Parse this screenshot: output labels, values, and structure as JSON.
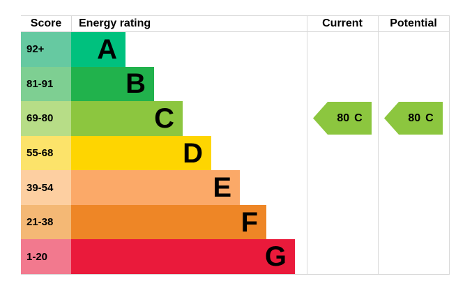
{
  "header": {
    "score": "Score",
    "rating": "Energy rating",
    "current": "Current",
    "potential": "Potential"
  },
  "bands": [
    {
      "score_range": "92+",
      "letter": "A",
      "bar_color": "#00c17e",
      "score_bg": "#66c9a1"
    },
    {
      "score_range": "81-91",
      "letter": "B",
      "bar_color": "#21b24c",
      "score_bg": "#7ecf92"
    },
    {
      "score_range": "69-80",
      "letter": "C",
      "bar_color": "#8cc63f",
      "score_bg": "#b7dd87"
    },
    {
      "score_range": "55-68",
      "letter": "D",
      "bar_color": "#fed501",
      "score_bg": "#fce36a"
    },
    {
      "score_range": "39-54",
      "letter": "E",
      "bar_color": "#fba968",
      "score_bg": "#fdcfa1"
    },
    {
      "score_range": "21-38",
      "letter": "F",
      "bar_color": "#ee8626",
      "score_bg": "#f4b875"
    },
    {
      "score_range": "1-20",
      "letter": "G",
      "bar_color": "#ea1a3b",
      "score_bg": "#f2798e"
    }
  ],
  "current": {
    "score": "80",
    "band": "C",
    "arrow_color": "#8cc63f"
  },
  "potential": {
    "score": "80",
    "band": "C",
    "arrow_color": "#8cc63f"
  },
  "grid_color": "#d8d8d8",
  "chart_data": {
    "type": "bar",
    "title": "Energy rating",
    "categories": [
      "A",
      "B",
      "C",
      "D",
      "E",
      "F",
      "G"
    ],
    "score_ranges": [
      "92+",
      "81-91",
      "69-80",
      "55-68",
      "39-54",
      "21-38",
      "1-20"
    ],
    "band_colors": [
      "#00c17e",
      "#21b24c",
      "#8cc63f",
      "#fed501",
      "#fba968",
      "#ee8626",
      "#ea1a3b"
    ],
    "values": [
      78,
      119,
      160,
      201,
      242,
      280,
      321
    ],
    "annotations": [
      {
        "label": "Current",
        "value": 80,
        "band": "C"
      },
      {
        "label": "Potential",
        "value": 80,
        "band": "C"
      }
    ],
    "legend": "off",
    "grid": "off"
  }
}
